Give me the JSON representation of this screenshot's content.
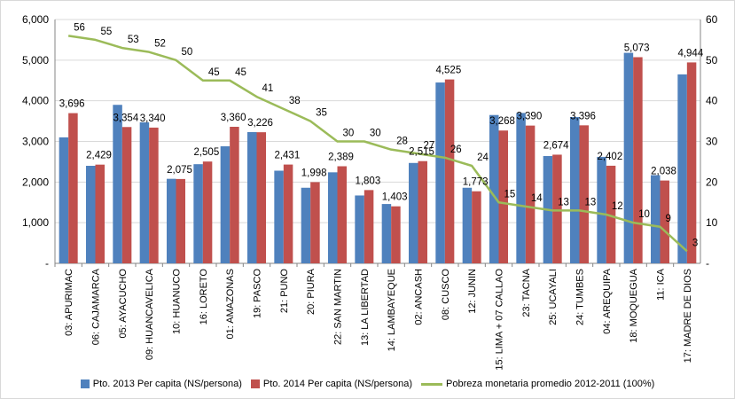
{
  "chart_data": {
    "type": "bar",
    "title": "",
    "xlabel": "",
    "ylabel": "",
    "ylim": [
      0,
      6000
    ],
    "y2lim": [
      0,
      60
    ],
    "left_ticks": [
      "-",
      "1,000",
      "2,000",
      "3,000",
      "4,000",
      "5,000",
      "6,000"
    ],
    "right_ticks": [
      "-",
      "10",
      "20",
      "30",
      "40",
      "50",
      "60"
    ],
    "categories": [
      "03: APURIMAC",
      "06: CAJAMARCA",
      "05: AYACUCHO",
      "09: HUANCAVELICA",
      "10: HUANUCO",
      "16: LORETO",
      "01: AMAZONAS",
      "19: PASCO",
      "21: PUNO",
      "20: PIURA",
      "22: SAN MARTIN",
      "13: LA LIBERTAD",
      "14: LAMBAYEQUE",
      "02: ANCASH",
      "08: CUSCO",
      "12: JUNIN",
      "15: LIMA + 07 CALLAO",
      "23: TACNA",
      "25: UCAYALI",
      "24: TUMBES",
      "04: AREQUIPA",
      "18: MOQUEGUA",
      "11: ICA",
      "17: MADRE DE DIOS"
    ],
    "series": [
      {
        "name": "Pto. 2013 Per capita (NS/persona)",
        "type": "bar",
        "color": "#4f81bd",
        "values": [
          3100,
          2400,
          3900,
          3470,
          2080,
          2440,
          2880,
          3230,
          2280,
          1860,
          2240,
          1670,
          1460,
          2470,
          4450,
          1860,
          3650,
          3700,
          2640,
          3600,
          2620,
          5180,
          2170,
          4650
        ],
        "labels": []
      },
      {
        "name": "Pto. 2014 Per capita (NS/persona)",
        "type": "bar",
        "color": "#c0504d",
        "values": [
          3696,
          2429,
          3354,
          3340,
          2075,
          2505,
          3360,
          3226,
          2431,
          1998,
          2389,
          1803,
          1403,
          2515,
          4525,
          1773,
          3268,
          3390,
          2674,
          3396,
          2402,
          5073,
          2038,
          4944
        ],
        "labels": [
          "3,696",
          "2,429",
          "3,354",
          "3,340",
          "2,075",
          "2,505",
          "3,360",
          "3,226",
          "2,431",
          "1,998",
          "2,389",
          "1,803",
          "1,403",
          "2,515",
          "4,525",
          "1,773",
          "3,268",
          "3,390",
          "2,674",
          "3,396",
          "2,402",
          "5,073",
          "2,038",
          "4,944"
        ]
      },
      {
        "name": "Pobreza monetaria promedio 2012-2011 (100%)",
        "type": "line",
        "axis": "right",
        "color": "#9bbb59",
        "values": [
          56,
          55,
          53,
          52,
          50,
          45,
          45,
          41,
          38,
          35,
          30,
          30,
          28,
          27,
          26,
          24,
          15,
          14,
          13,
          13,
          12,
          10,
          9,
          3
        ]
      }
    ],
    "grid": true,
    "legend_position": "bottom"
  }
}
